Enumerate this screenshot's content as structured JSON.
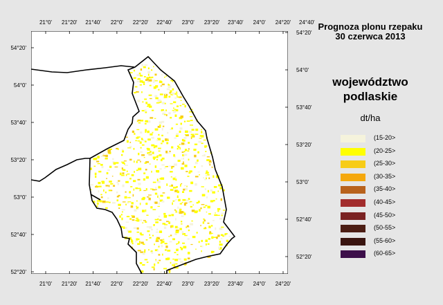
{
  "title": [
    "Prognoza plonu rzepaku",
    "30 czerwca 2013"
  ],
  "region": [
    "województwo",
    "podlaskie"
  ],
  "unit": "dt/ha",
  "legend": [
    {
      "label": "(15-20>",
      "color": "#f5f3dc"
    },
    {
      "label": "(20-25>",
      "color": "#ffff00"
    },
    {
      "label": "(25-30>",
      "color": "#f7cc17"
    },
    {
      "label": "(30-35>",
      "color": "#f5a80d"
    },
    {
      "label": "(35-40>",
      "color": "#b8621c"
    },
    {
      "label": "(40-45>",
      "color": "#a22c2c"
    },
    {
      "label": "(45-50>",
      "color": "#7a2222"
    },
    {
      "label": "(50-55>",
      "color": "#4c1e14"
    },
    {
      "label": "(55-60>",
      "color": "#3a1510"
    },
    {
      "label": "(60-65>",
      "color": "#3d0f4a"
    }
  ],
  "map": {
    "lon_ticks": [
      "21°0'",
      "21°20'",
      "21°40'",
      "22°0'",
      "22°20'",
      "22°40'",
      "23°0'",
      "23°20'",
      "23°40'",
      "24°0'",
      "24°20'",
      "24°40'"
    ],
    "lon_ticks_bottom": [
      "21°0'",
      "21°20'",
      "21°40'",
      "22°0'",
      "22°20'",
      "22°40'",
      "23°0'",
      "23°20'",
      "23°40'",
      "24°0'",
      "24°20'"
    ],
    "lat_ticks_left": [
      "54°20'",
      "54°0'",
      "53°40'",
      "53°20'",
      "53°0'",
      "52°40'",
      "52°20'"
    ],
    "lat_ticks_right": [
      "54°20'",
      "54°0'",
      "53°40'",
      "53°20'",
      "53°0'",
      "52°40'",
      "52°20'"
    ]
  }
}
